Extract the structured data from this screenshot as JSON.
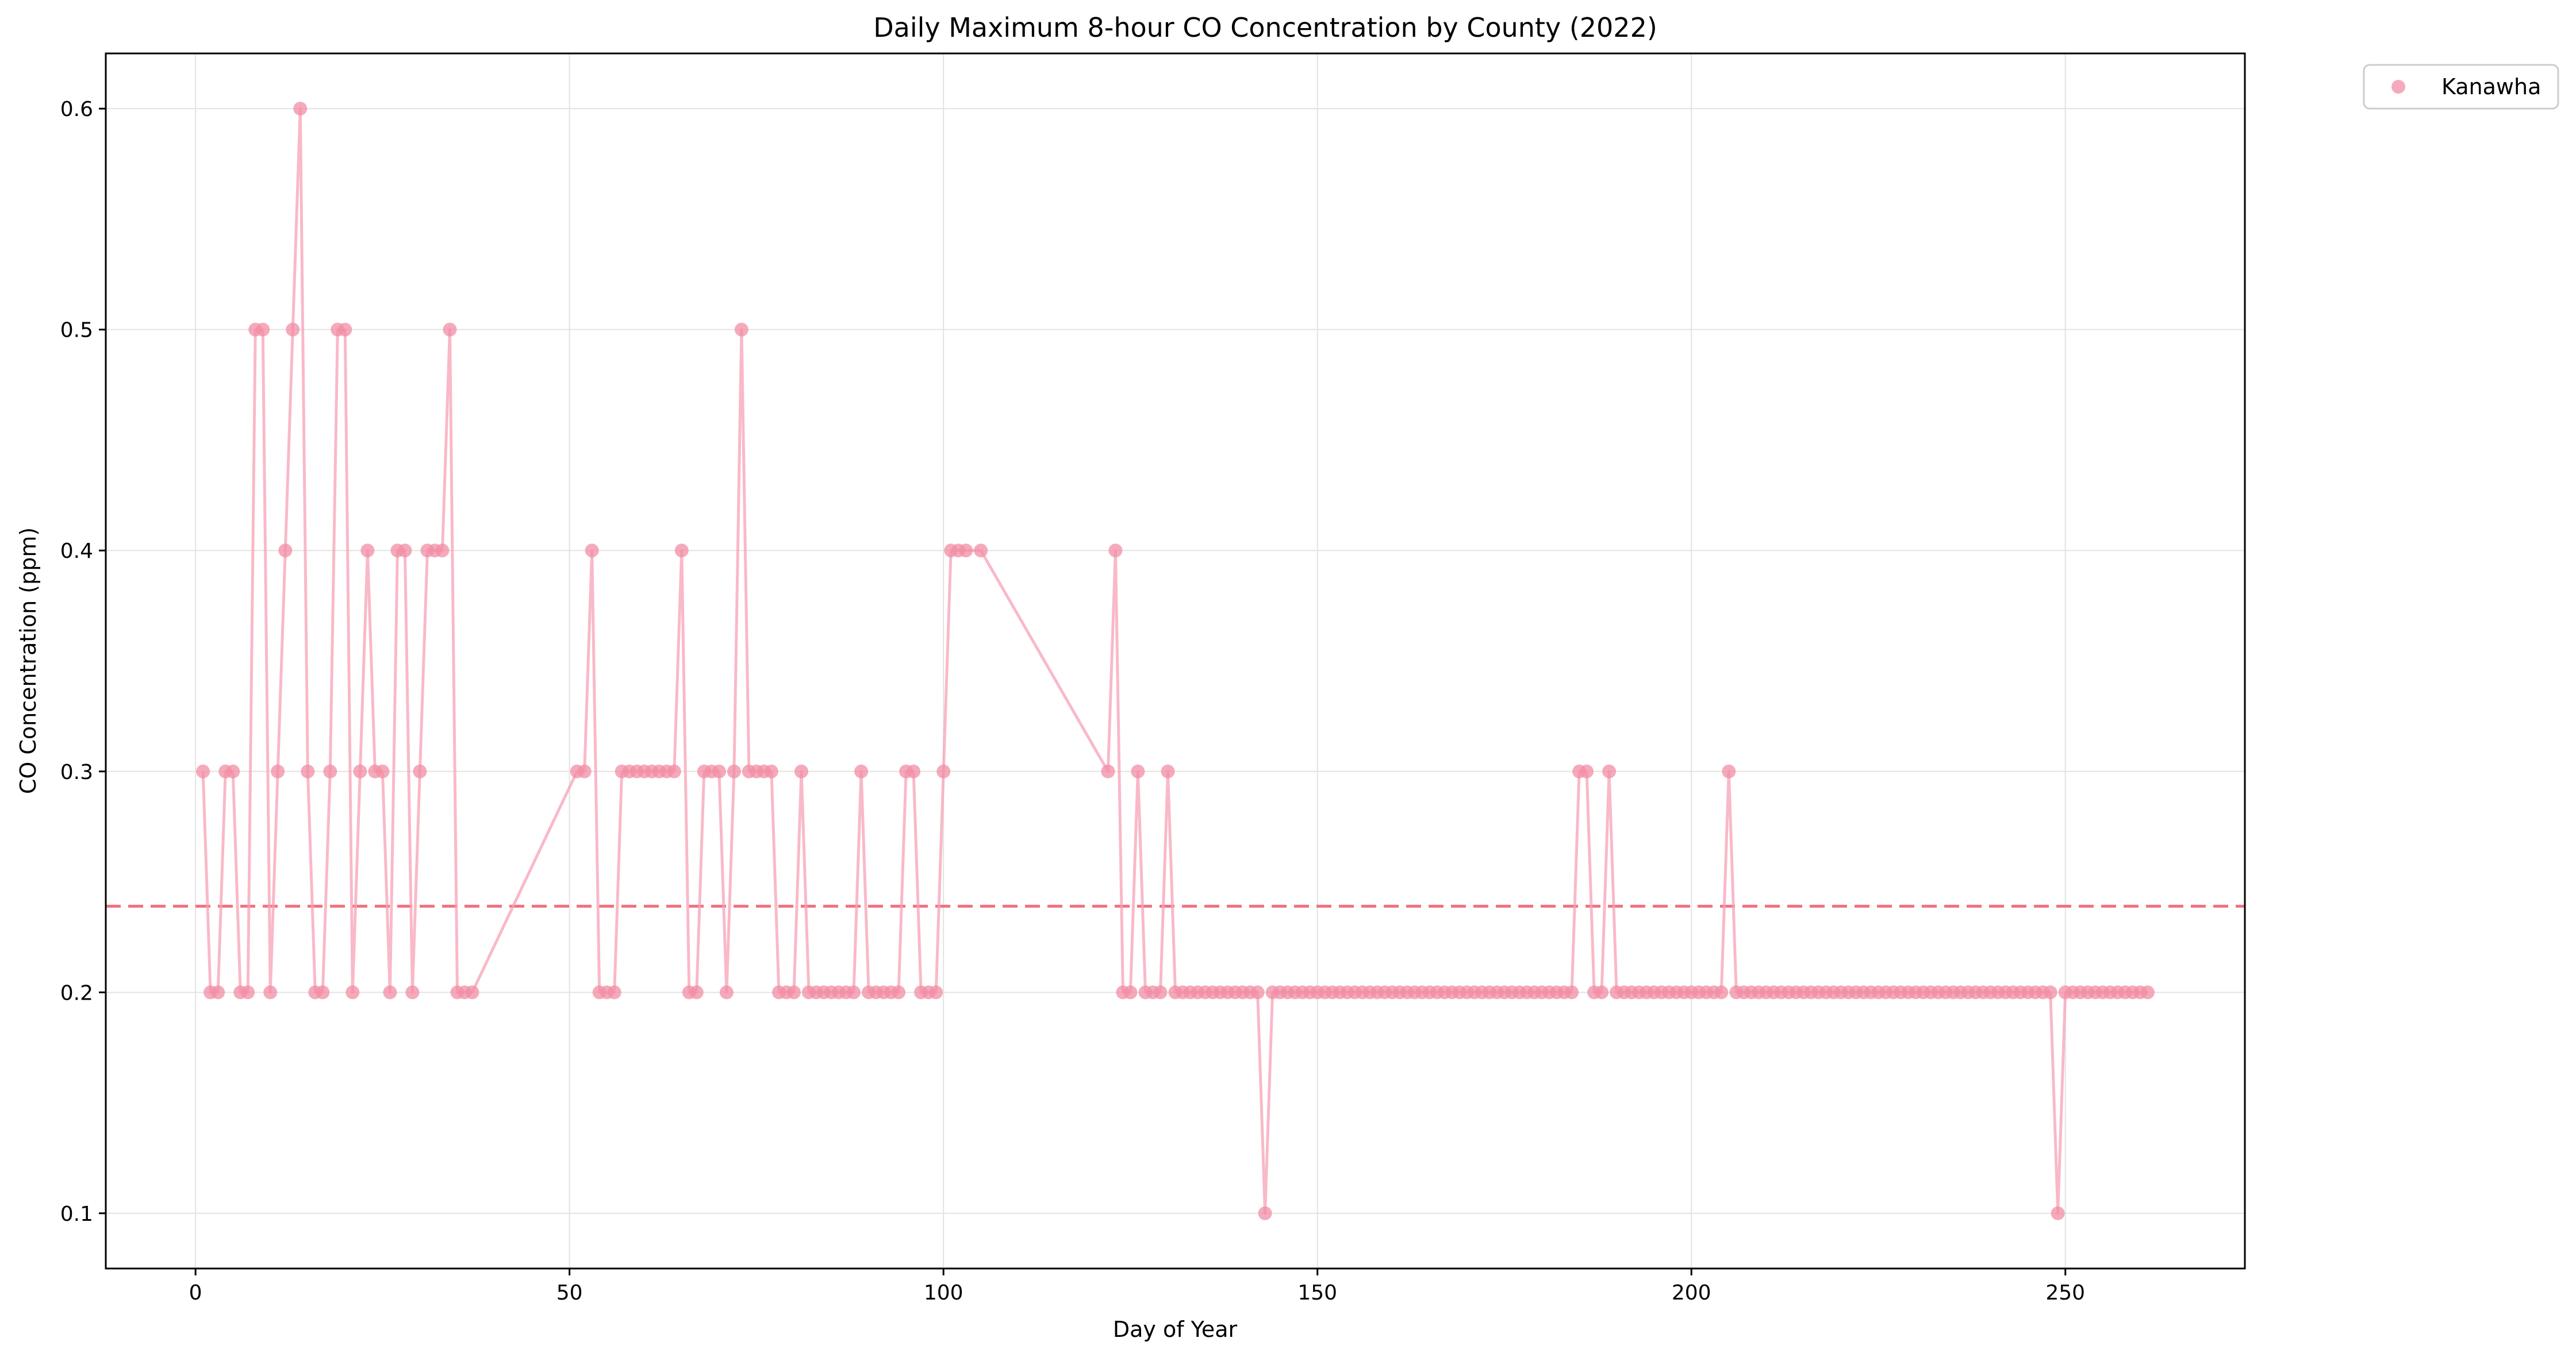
{
  "chart_data": {
    "type": "line",
    "title": "Daily Maximum 8-hour CO Concentration by County (2022)",
    "xlabel": "Day of Year",
    "ylabel": "CO Concentration (ppm)",
    "xlim": [
      -12,
      274
    ],
    "ylim": [
      0.075,
      0.625
    ],
    "xticks": [
      0,
      50,
      100,
      150,
      200,
      250
    ],
    "yticks": [
      0.1,
      0.2,
      0.3,
      0.4,
      0.5,
      0.6
    ],
    "xtick_labels": [
      "0",
      "50",
      "100",
      "150",
      "200",
      "250"
    ],
    "ytick_labels": [
      "0.1",
      "0.2",
      "0.3",
      "0.4",
      "0.5",
      "0.6"
    ],
    "grid": true,
    "legend_position": "outside-top-right",
    "mean_line": {
      "value": 0.239,
      "color": "#f07180",
      "style": "dashed"
    },
    "series": [
      {
        "name": "Kanawha",
        "color": "#f7a1b5",
        "marker_color": "#f28ea4",
        "points": [
          [
            1,
            0.3
          ],
          [
            2,
            0.2
          ],
          [
            3,
            0.2
          ],
          [
            4,
            0.3
          ],
          [
            5,
            0.3
          ],
          [
            6,
            0.2
          ],
          [
            7,
            0.2
          ],
          [
            8,
            0.5
          ],
          [
            9,
            0.5
          ],
          [
            10,
            0.2
          ],
          [
            11,
            0.3
          ],
          [
            12,
            0.4
          ],
          [
            13,
            0.5
          ],
          [
            14,
            0.6
          ],
          [
            15,
            0.3
          ],
          [
            16,
            0.2
          ],
          [
            17,
            0.2
          ],
          [
            18,
            0.3
          ],
          [
            19,
            0.5
          ],
          [
            20,
            0.5
          ],
          [
            21,
            0.2
          ],
          [
            22,
            0.3
          ],
          [
            23,
            0.4
          ],
          [
            24,
            0.3
          ],
          [
            25,
            0.3
          ],
          [
            26,
            0.2
          ],
          [
            27,
            0.4
          ],
          [
            28,
            0.4
          ],
          [
            29,
            0.2
          ],
          [
            30,
            0.3
          ],
          [
            31,
            0.4
          ],
          [
            32,
            0.4
          ],
          [
            33,
            0.4
          ],
          [
            34,
            0.5
          ],
          [
            35,
            0.2
          ],
          [
            36,
            0.2
          ],
          [
            37,
            0.2
          ],
          [
            51,
            0.3
          ],
          [
            52,
            0.3
          ],
          [
            53,
            0.4
          ],
          [
            54,
            0.2
          ],
          [
            55,
            0.2
          ],
          [
            56,
            0.2
          ],
          [
            57,
            0.3
          ],
          [
            58,
            0.3
          ],
          [
            59,
            0.3
          ],
          [
            60,
            0.3
          ],
          [
            61,
            0.3
          ],
          [
            62,
            0.3
          ],
          [
            63,
            0.3
          ],
          [
            64,
            0.3
          ],
          [
            65,
            0.4
          ],
          [
            66,
            0.2
          ],
          [
            67,
            0.2
          ],
          [
            68,
            0.3
          ],
          [
            69,
            0.3
          ],
          [
            70,
            0.3
          ],
          [
            71,
            0.2
          ],
          [
            72,
            0.3
          ],
          [
            73,
            0.5
          ],
          [
            74,
            0.3
          ],
          [
            75,
            0.3
          ],
          [
            76,
            0.3
          ],
          [
            77,
            0.3
          ],
          [
            78,
            0.2
          ],
          [
            79,
            0.2
          ],
          [
            80,
            0.2
          ],
          [
            81,
            0.3
          ],
          [
            82,
            0.2
          ],
          [
            83,
            0.2
          ],
          [
            84,
            0.2
          ],
          [
            85,
            0.2
          ],
          [
            86,
            0.2
          ],
          [
            87,
            0.2
          ],
          [
            88,
            0.2
          ],
          [
            89,
            0.3
          ],
          [
            90,
            0.2
          ],
          [
            91,
            0.2
          ],
          [
            92,
            0.2
          ],
          [
            93,
            0.2
          ],
          [
            94,
            0.2
          ],
          [
            95,
            0.3
          ],
          [
            96,
            0.3
          ],
          [
            97,
            0.2
          ],
          [
            98,
            0.2
          ],
          [
            99,
            0.2
          ],
          [
            100,
            0.3
          ],
          [
            101,
            0.4
          ],
          [
            102,
            0.4
          ],
          [
            103,
            0.4
          ],
          [
            105,
            0.4
          ],
          [
            122,
            0.3
          ],
          [
            123,
            0.4
          ],
          [
            124,
            0.2
          ],
          [
            125,
            0.2
          ],
          [
            126,
            0.3
          ],
          [
            127,
            0.2
          ],
          [
            128,
            0.2
          ],
          [
            129,
            0.2
          ],
          [
            130,
            0.3
          ],
          [
            131,
            0.2
          ],
          [
            132,
            0.2
          ],
          [
            133,
            0.2
          ],
          [
            134,
            0.2
          ],
          [
            135,
            0.2
          ],
          [
            136,
            0.2
          ],
          [
            137,
            0.2
          ],
          [
            138,
            0.2
          ],
          [
            139,
            0.2
          ],
          [
            140,
            0.2
          ],
          [
            141,
            0.2
          ],
          [
            142,
            0.2
          ],
          [
            143,
            0.1
          ],
          [
            144,
            0.2
          ],
          [
            145,
            0.2
          ],
          [
            146,
            0.2
          ],
          [
            147,
            0.2
          ],
          [
            148,
            0.2
          ],
          [
            149,
            0.2
          ],
          [
            150,
            0.2
          ],
          [
            151,
            0.2
          ],
          [
            152,
            0.2
          ],
          [
            153,
            0.2
          ],
          [
            154,
            0.2
          ],
          [
            155,
            0.2
          ],
          [
            156,
            0.2
          ],
          [
            157,
            0.2
          ],
          [
            158,
            0.2
          ],
          [
            159,
            0.2
          ],
          [
            160,
            0.2
          ],
          [
            161,
            0.2
          ],
          [
            162,
            0.2
          ],
          [
            163,
            0.2
          ],
          [
            164,
            0.2
          ],
          [
            165,
            0.2
          ],
          [
            166,
            0.2
          ],
          [
            167,
            0.2
          ],
          [
            168,
            0.2
          ],
          [
            169,
            0.2
          ],
          [
            170,
            0.2
          ],
          [
            171,
            0.2
          ],
          [
            172,
            0.2
          ],
          [
            173,
            0.2
          ],
          [
            174,
            0.2
          ],
          [
            175,
            0.2
          ],
          [
            176,
            0.2
          ],
          [
            177,
            0.2
          ],
          [
            178,
            0.2
          ],
          [
            179,
            0.2
          ],
          [
            180,
            0.2
          ],
          [
            181,
            0.2
          ],
          [
            182,
            0.2
          ],
          [
            183,
            0.2
          ],
          [
            184,
            0.2
          ],
          [
            185,
            0.3
          ],
          [
            186,
            0.3
          ],
          [
            187,
            0.2
          ],
          [
            188,
            0.2
          ],
          [
            189,
            0.3
          ],
          [
            190,
            0.2
          ],
          [
            191,
            0.2
          ],
          [
            192,
            0.2
          ],
          [
            193,
            0.2
          ],
          [
            194,
            0.2
          ],
          [
            195,
            0.2
          ],
          [
            196,
            0.2
          ],
          [
            197,
            0.2
          ],
          [
            198,
            0.2
          ],
          [
            199,
            0.2
          ],
          [
            200,
            0.2
          ],
          [
            201,
            0.2
          ],
          [
            202,
            0.2
          ],
          [
            203,
            0.2
          ],
          [
            204,
            0.2
          ],
          [
            205,
            0.3
          ],
          [
            206,
            0.2
          ],
          [
            207,
            0.2
          ],
          [
            208,
            0.2
          ],
          [
            209,
            0.2
          ],
          [
            210,
            0.2
          ],
          [
            211,
            0.2
          ],
          [
            212,
            0.2
          ],
          [
            213,
            0.2
          ],
          [
            214,
            0.2
          ],
          [
            215,
            0.2
          ],
          [
            216,
            0.2
          ],
          [
            217,
            0.2
          ],
          [
            218,
            0.2
          ],
          [
            219,
            0.2
          ],
          [
            220,
            0.2
          ],
          [
            221,
            0.2
          ],
          [
            222,
            0.2
          ],
          [
            223,
            0.2
          ],
          [
            224,
            0.2
          ],
          [
            225,
            0.2
          ],
          [
            226,
            0.2
          ],
          [
            227,
            0.2
          ],
          [
            228,
            0.2
          ],
          [
            229,
            0.2
          ],
          [
            230,
            0.2
          ],
          [
            231,
            0.2
          ],
          [
            232,
            0.2
          ],
          [
            233,
            0.2
          ],
          [
            234,
            0.2
          ],
          [
            235,
            0.2
          ],
          [
            236,
            0.2
          ],
          [
            237,
            0.2
          ],
          [
            238,
            0.2
          ],
          [
            239,
            0.2
          ],
          [
            240,
            0.2
          ],
          [
            241,
            0.2
          ],
          [
            242,
            0.2
          ],
          [
            243,
            0.2
          ],
          [
            244,
            0.2
          ],
          [
            245,
            0.2
          ],
          [
            246,
            0.2
          ],
          [
            247,
            0.2
          ],
          [
            248,
            0.2
          ],
          [
            249,
            0.1
          ],
          [
            250,
            0.2
          ],
          [
            251,
            0.2
          ],
          [
            252,
            0.2
          ],
          [
            253,
            0.2
          ],
          [
            254,
            0.2
          ],
          [
            255,
            0.2
          ],
          [
            256,
            0.2
          ],
          [
            257,
            0.2
          ],
          [
            258,
            0.2
          ],
          [
            259,
            0.2
          ],
          [
            260,
            0.2
          ],
          [
            261,
            0.2
          ]
        ]
      }
    ]
  }
}
